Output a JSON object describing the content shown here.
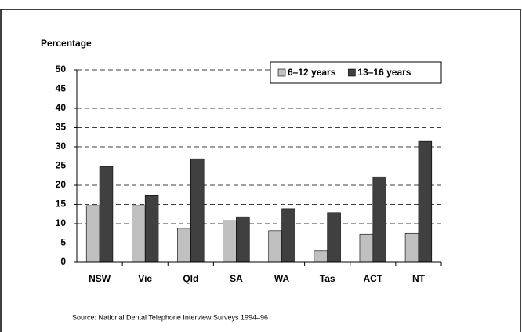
{
  "chart_data": {
    "type": "bar",
    "y_label": "Percentage",
    "categories": [
      "NSW",
      "Vic",
      "Qld",
      "SA",
      "WA",
      "Tas",
      "ACT",
      "NT"
    ],
    "series": [
      {
        "name": "6–12 years",
        "color": "#c0c0c0",
        "values": [
          14.7,
          14.7,
          8.8,
          10.8,
          8.2,
          2.9,
          7.3,
          7.5
        ]
      },
      {
        "name": "13–16 years",
        "color": "#404040",
        "values": [
          24.9,
          17.3,
          26.9,
          11.8,
          13.9,
          12.9,
          22.2,
          31.4
        ]
      }
    ],
    "ylim": [
      0,
      50
    ],
    "yticks": [
      0,
      5,
      10,
      15,
      20,
      25,
      30,
      35,
      40,
      45,
      50
    ],
    "grid": true,
    "legend": "top-right",
    "source": "Source:  National Dental Telephone Interview Surveys 1994–96"
  }
}
